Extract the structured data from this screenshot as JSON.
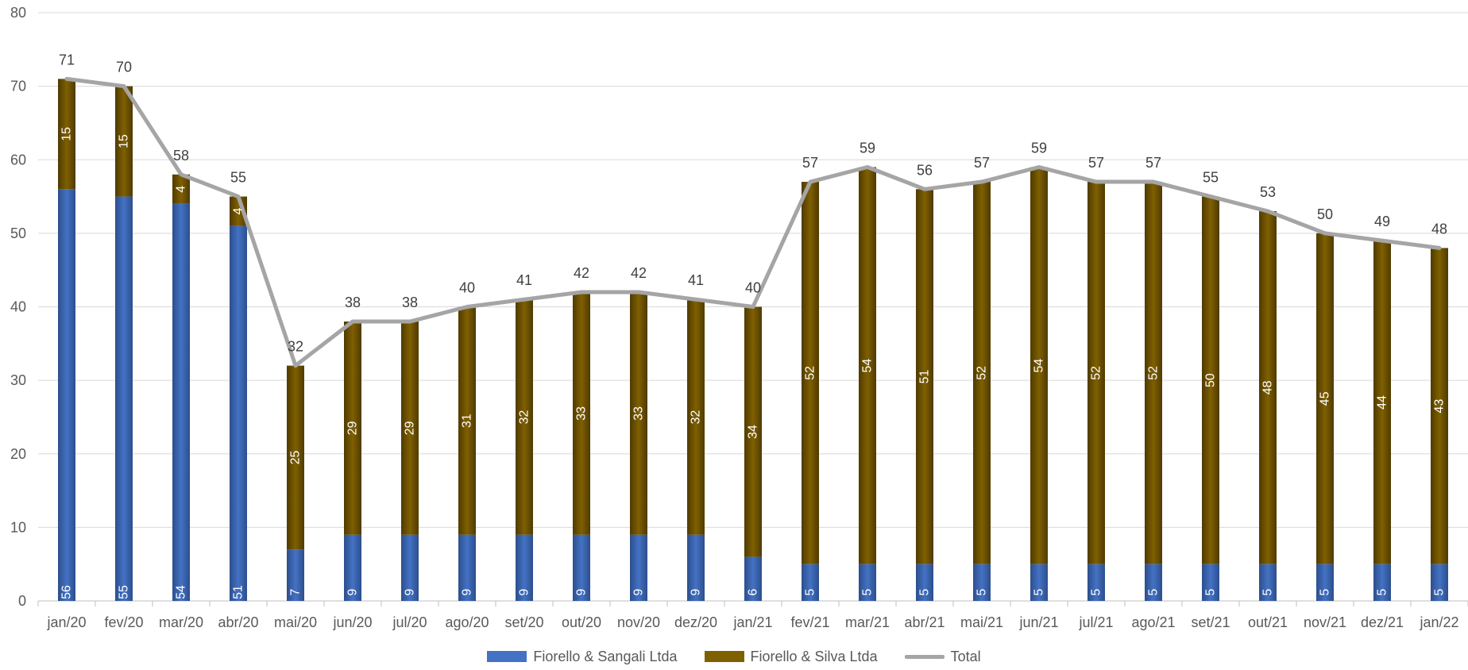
{
  "chart_data": {
    "type": "bar",
    "stacked": true,
    "title": "",
    "xlabel": "",
    "ylabel": "",
    "ylim": [
      0,
      80
    ],
    "yticks": [
      0,
      10,
      20,
      30,
      40,
      50,
      60,
      70,
      80
    ],
    "grid": true,
    "legend_position": "bottom",
    "categories": [
      "jan/20",
      "fev/20",
      "mar/20",
      "abr/20",
      "mai/20",
      "jun/20",
      "jul/20",
      "ago/20",
      "set/20",
      "out/20",
      "nov/20",
      "dez/20",
      "jan/21",
      "fev/21",
      "mar/21",
      "abr/21",
      "mai/21",
      "jun/21",
      "jul/21",
      "ago/21",
      "set/21",
      "out/21",
      "nov/21",
      "dez/21",
      "jan/22"
    ],
    "series": [
      {
        "name": "Fiorello & Sangali Ltda",
        "type": "bar",
        "color": "#4472C4",
        "values": [
          56,
          55,
          54,
          51,
          7,
          9,
          9,
          9,
          9,
          9,
          9,
          9,
          6,
          5,
          5,
          5,
          5,
          5,
          5,
          5,
          5,
          5,
          5,
          5,
          5
        ]
      },
      {
        "name": "Fiorello & Silva Ltda",
        "type": "bar",
        "color": "#7F6000",
        "values": [
          15,
          15,
          4,
          4,
          25,
          29,
          29,
          31,
          32,
          33,
          33,
          32,
          34,
          52,
          54,
          51,
          52,
          54,
          52,
          52,
          50,
          48,
          45,
          44,
          43
        ]
      },
      {
        "name": "Total",
        "type": "line",
        "color": "#A5A5A5",
        "values": [
          71,
          70,
          58,
          55,
          32,
          38,
          38,
          40,
          41,
          42,
          42,
          41,
          40,
          57,
          59,
          56,
          57,
          59,
          57,
          57,
          55,
          53,
          50,
          49,
          48
        ]
      }
    ]
  }
}
